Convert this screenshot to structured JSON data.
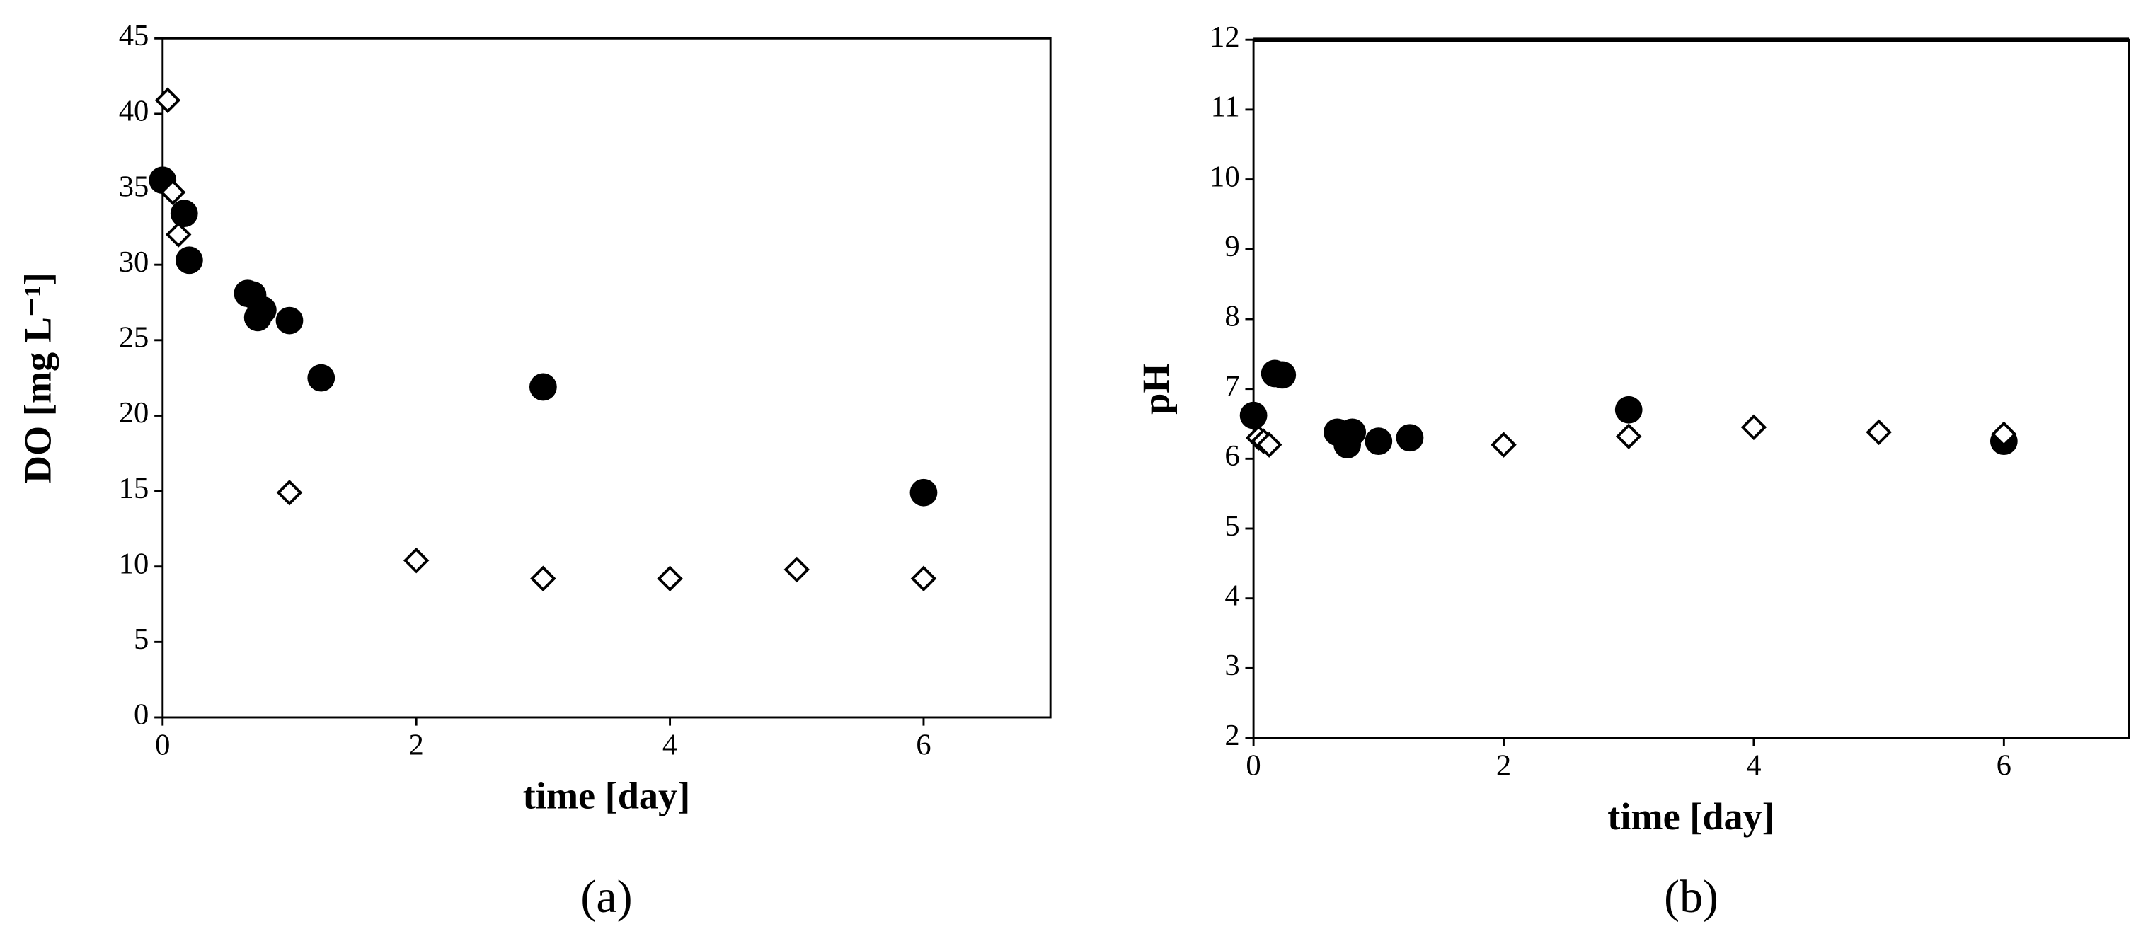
{
  "chart_data": [
    {
      "type": "scatter",
      "panel": "(a)",
      "xlabel": "time [day]",
      "ylabel": "DO [mg L⁻¹]",
      "xlim": [
        0,
        7
      ],
      "xticks": [
        0,
        2,
        4,
        6
      ],
      "ylim": [
        0,
        45
      ],
      "yticks": [
        0,
        5,
        10,
        15,
        20,
        25,
        30,
        35,
        40,
        45
      ],
      "series": [
        {
          "marker": "circle",
          "color": "#000000",
          "x": [
            0,
            0.17,
            0.21,
            0.67,
            0.71,
            0.79,
            0.75,
            1,
            1.25,
            3,
            6
          ],
          "values": [
            35.6,
            33.4,
            30.3,
            28.1,
            28.0,
            27.0,
            26.5,
            26.3,
            22.5,
            21.9,
            14.9
          ]
        },
        {
          "marker": "diamond",
          "color": "#000000",
          "x": [
            0.04,
            0.08,
            0.125,
            1,
            2,
            3,
            4,
            5,
            6
          ],
          "values": [
            40.9,
            34.8,
            32.0,
            14.9,
            10.4,
            9.2,
            9.2,
            9.8,
            9.2
          ]
        }
      ]
    },
    {
      "type": "scatter",
      "panel": "(b)",
      "xlabel": "time [day]",
      "ylabel": "pH",
      "xlim": [
        0,
        7
      ],
      "xticks": [
        0,
        2,
        4,
        6
      ],
      "ylim": [
        2,
        12
      ],
      "yticks": [
        2,
        3,
        4,
        5,
        6,
        7,
        8,
        9,
        10,
        11,
        12
      ],
      "series": [
        {
          "marker": "circle",
          "color": "#000000",
          "x": [
            0,
            0.17,
            0.23,
            0.67,
            0.75,
            0.79,
            1,
            1.25,
            3,
            6
          ],
          "values": [
            6.62,
            7.22,
            7.2,
            6.38,
            6.2,
            6.38,
            6.25,
            6.3,
            6.7,
            6.25
          ]
        },
        {
          "marker": "diamond",
          "color": "#000000",
          "x": [
            0.04,
            0.08,
            0.125,
            2,
            3,
            4,
            5,
            6
          ],
          "values": [
            6.3,
            6.25,
            6.2,
            6.2,
            6.32,
            6.45,
            6.38,
            6.35
          ]
        }
      ]
    }
  ]
}
